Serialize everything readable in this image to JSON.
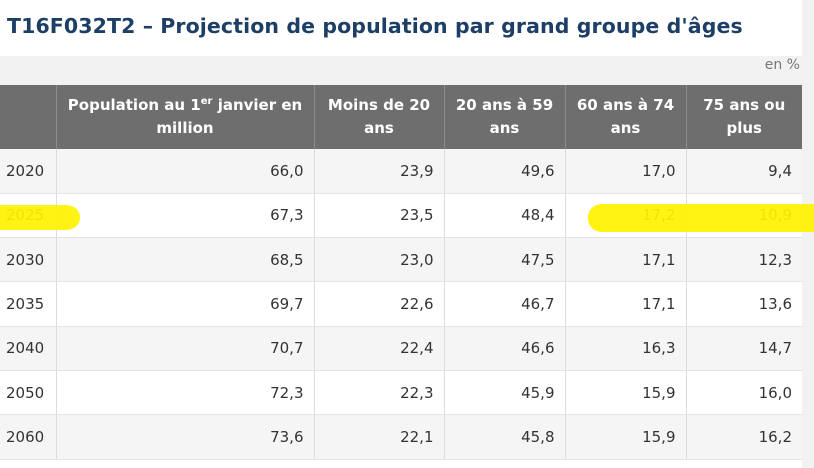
{
  "title": "T16F032T2 – Projection de population par grand groupe d'âges",
  "unit_note": "en %",
  "header": {
    "year": "",
    "population_pre": "Population au 1",
    "population_sup": "er",
    "population_post": " janvier en million",
    "moins_20": "Moins de 20 ans",
    "a20_59": "20 ans à 59 ans",
    "a60_74": "60 ans à 74 ans",
    "a75_plus": "75 ans ou plus"
  },
  "rows": [
    {
      "year": "2020",
      "population": "66,0",
      "moins_20": "23,9",
      "a20_59": "49,6",
      "a60_74": "17,0",
      "a75_plus": "9,4"
    },
    {
      "year": "2025",
      "population": "67,3",
      "moins_20": "23,5",
      "a20_59": "48,4",
      "a60_74": "17,2",
      "a75_plus": "10,9"
    },
    {
      "year": "2030",
      "population": "68,5",
      "moins_20": "23,0",
      "a20_59": "47,5",
      "a60_74": "17,1",
      "a75_plus": "12,3"
    },
    {
      "year": "2035",
      "population": "69,7",
      "moins_20": "22,6",
      "a20_59": "46,7",
      "a60_74": "17,1",
      "a75_plus": "13,6"
    },
    {
      "year": "2040",
      "population": "70,7",
      "moins_20": "22,4",
      "a20_59": "46,6",
      "a60_74": "16,3",
      "a75_plus": "14,7"
    },
    {
      "year": "2050",
      "population": "72,3",
      "moins_20": "22,3",
      "a20_59": "45,9",
      "a60_74": "15,9",
      "a75_plus": "16,0"
    },
    {
      "year": "2060",
      "population": "73,6",
      "moins_20": "22,1",
      "a20_59": "45,8",
      "a60_74": "15,9",
      "a75_plus": "16,2"
    }
  ],
  "highlight_color": "#fff200",
  "title_color": "#1d3f66",
  "header_bg": "#6e6e6e"
}
